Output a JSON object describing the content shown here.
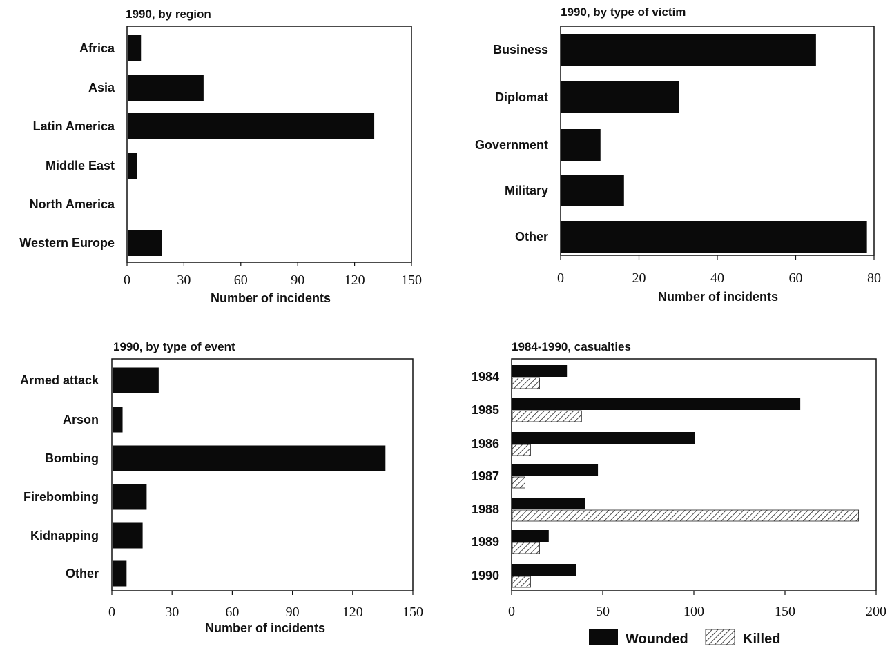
{
  "chart_data": [
    {
      "type": "bar",
      "orientation": "horizontal",
      "title": "1990, by region",
      "xlabel": "Number of incidents",
      "categories": [
        "Africa",
        "Asia",
        "Latin  America",
        "Middle East",
        "North America",
        "Western  Europe"
      ],
      "values": [
        7,
        40,
        130,
        5,
        0,
        18
      ],
      "xlim": [
        0,
        150
      ],
      "xticks": [
        "0",
        "30",
        "60",
        "90",
        "120",
        "150"
      ],
      "grid": false
    },
    {
      "type": "bar",
      "orientation": "horizontal",
      "title": "1990, by type of victim",
      "xlabel": "Number of incidents",
      "categories": [
        "Business",
        "Diplomat",
        "Government",
        "Military",
        "Other"
      ],
      "values": [
        65,
        30,
        10,
        16,
        78
      ],
      "xlim": [
        0,
        80
      ],
      "xticks": [
        "0",
        "20",
        "40",
        "60",
        "80"
      ],
      "grid": false
    },
    {
      "type": "bar",
      "orientation": "horizontal",
      "title": "1990, by type of event",
      "xlabel": "Number of incidents",
      "categories": [
        "Armed attack",
        "Arson",
        "Bombing",
        "Firebombing",
        "Kidnapping",
        "Other"
      ],
      "values": [
        23,
        5,
        136,
        17,
        15,
        7
      ],
      "xlim": [
        0,
        150
      ],
      "xticks": [
        "0",
        "30",
        "60",
        "90",
        "120",
        "150"
      ],
      "grid": false
    },
    {
      "type": "bar",
      "orientation": "horizontal",
      "title": "1984-1990,  casualties",
      "xlabel": "",
      "categories": [
        "1984",
        "1985",
        "1986",
        "1987",
        "1988",
        "1989",
        "1990"
      ],
      "series": [
        {
          "name": "Wounded",
          "values": [
            30,
            158,
            100,
            47,
            40,
            20,
            35
          ]
        },
        {
          "name": "Killed",
          "values": [
            15,
            38,
            10,
            7,
            190,
            15,
            10
          ]
        }
      ],
      "xlim": [
        0,
        200
      ],
      "xticks": [
        "0",
        "50",
        "100",
        "150",
        "200"
      ],
      "legend": "bottom",
      "grid": false
    }
  ]
}
